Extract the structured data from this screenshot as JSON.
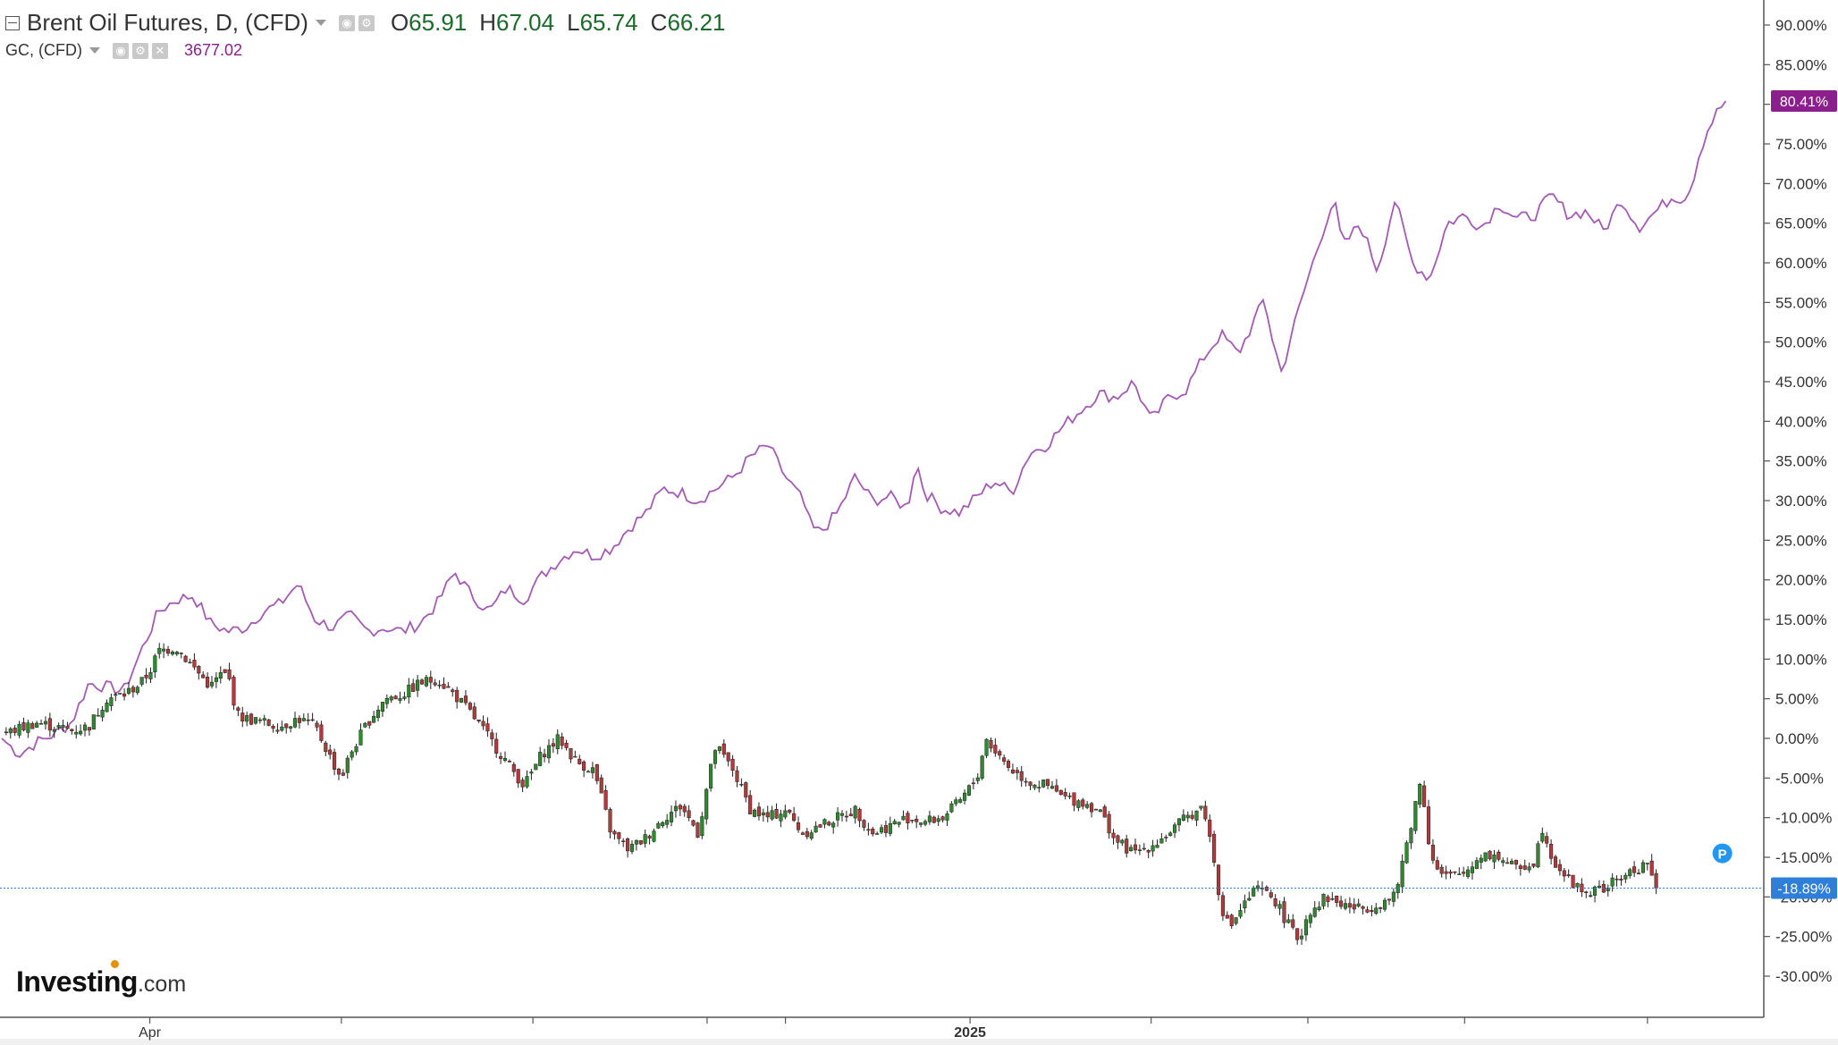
{
  "legend": {
    "series1_title": "Brent Oil Futures, D, (CFD)",
    "o_label": "O",
    "o_value": "65.91",
    "h_label": "H",
    "h_value": "67.04",
    "l_label": "L",
    "l_value": "65.74",
    "c_label": "C",
    "c_value": "66.21",
    "series2_title": "GC, (CFD)",
    "series2_value": "3677.02"
  },
  "logo": {
    "brand": "Investing",
    "suffix": ".com"
  },
  "colors": {
    "gold_line": "#a35ab5",
    "candle_up": "#2f8a2f",
    "candle_down": "#b23a3a",
    "gold_label_bg": "#8b1f8b",
    "brent_label_bg": "#2f7fd8",
    "marker": "#2196f3"
  },
  "chart_data": {
    "type": "line",
    "y_unit": "percent change",
    "ylim": [
      -33,
      94
    ],
    "y_ticks": [
      "90.00%",
      "85.00%",
      "80.00%",
      "75.00%",
      "70.00%",
      "65.00%",
      "60.00%",
      "55.00%",
      "50.00%",
      "45.00%",
      "40.00%",
      "35.00%",
      "30.00%",
      "25.00%",
      "20.00%",
      "15.00%",
      "10.00%",
      "5.00%",
      "0.00%",
      "-5.00%",
      "-10.00%",
      "-15.00%",
      "-20.00%",
      "-25.00%",
      "-30.00%"
    ],
    "x_labels": [
      {
        "label": "Apr",
        "t": 0.085
      },
      {
        "label": "2025",
        "t": 0.556
      }
    ],
    "x_ticks": [
      0.085,
      0.195,
      0.305,
      0.405,
      0.45,
      0.556,
      0.66,
      0.75,
      0.84,
      0.945
    ],
    "last_value_labels": [
      {
        "series": "GC, (CFD)",
        "value": 80.41,
        "text": "80.41%"
      },
      {
        "series": "Brent Oil Futures, D, (CFD)",
        "value": -18.89,
        "text": "-18.89%"
      }
    ],
    "marker": {
      "text": "P",
      "t": 0.988,
      "value": -14.5
    },
    "series": [
      {
        "name": "GC, (CFD)",
        "type": "line",
        "points": [
          [
            0,
            0
          ],
          [
            0.01,
            -2
          ],
          [
            0.02,
            -0.5
          ],
          [
            0.03,
            0.5
          ],
          [
            0.04,
            2
          ],
          [
            0.05,
            7
          ],
          [
            0.06,
            6.5
          ],
          [
            0.07,
            6
          ],
          [
            0.08,
            11
          ],
          [
            0.09,
            16
          ],
          [
            0.1,
            17.5
          ],
          [
            0.11,
            18
          ],
          [
            0.12,
            14.5
          ],
          [
            0.13,
            13.5
          ],
          [
            0.14,
            14
          ],
          [
            0.15,
            16
          ],
          [
            0.16,
            17
          ],
          [
            0.17,
            19.5
          ],
          [
            0.18,
            15
          ],
          [
            0.19,
            14
          ],
          [
            0.2,
            15.5
          ],
          [
            0.21,
            13.5
          ],
          [
            0.22,
            14
          ],
          [
            0.23,
            13.5
          ],
          [
            0.24,
            14.5
          ],
          [
            0.25,
            17
          ],
          [
            0.26,
            21
          ],
          [
            0.27,
            18
          ],
          [
            0.28,
            16
          ],
          [
            0.29,
            19
          ],
          [
            0.3,
            17.5
          ],
          [
            0.31,
            20.5
          ],
          [
            0.32,
            22.5
          ],
          [
            0.33,
            24
          ],
          [
            0.34,
            23
          ],
          [
            0.35,
            24
          ],
          [
            0.36,
            26.5
          ],
          [
            0.37,
            28.5
          ],
          [
            0.38,
            31.5
          ],
          [
            0.39,
            31
          ],
          [
            0.4,
            30
          ],
          [
            0.41,
            31.5
          ],
          [
            0.42,
            33
          ],
          [
            0.43,
            35.5
          ],
          [
            0.44,
            37
          ],
          [
            0.45,
            33
          ],
          [
            0.46,
            30
          ],
          [
            0.465,
            26.5
          ],
          [
            0.47,
            26
          ],
          [
            0.48,
            28.5
          ],
          [
            0.49,
            33
          ],
          [
            0.5,
            30
          ],
          [
            0.51,
            30.5
          ],
          [
            0.52,
            29
          ],
          [
            0.525,
            35
          ],
          [
            0.53,
            31
          ],
          [
            0.54,
            29
          ],
          [
            0.55,
            28.5
          ],
          [
            0.56,
            30.5
          ],
          [
            0.57,
            32.5
          ],
          [
            0.58,
            31
          ],
          [
            0.59,
            36
          ],
          [
            0.6,
            37
          ],
          [
            0.61,
            39.5
          ],
          [
            0.62,
            41.5
          ],
          [
            0.63,
            43.5
          ],
          [
            0.64,
            43
          ],
          [
            0.65,
            45
          ],
          [
            0.66,
            40
          ],
          [
            0.67,
            43
          ],
          [
            0.68,
            44
          ],
          [
            0.69,
            48
          ],
          [
            0.7,
            51
          ],
          [
            0.71,
            48.5
          ],
          [
            0.72,
            53
          ],
          [
            0.725,
            55.5
          ],
          [
            0.73,
            50
          ],
          [
            0.735,
            46
          ],
          [
            0.74,
            50.5
          ],
          [
            0.75,
            58
          ],
          [
            0.76,
            65
          ],
          [
            0.765,
            68
          ],
          [
            0.77,
            62
          ],
          [
            0.78,
            65
          ],
          [
            0.79,
            59
          ],
          [
            0.8,
            68
          ],
          [
            0.81,
            60
          ],
          [
            0.82,
            58
          ],
          [
            0.83,
            65
          ],
          [
            0.84,
            66
          ],
          [
            0.85,
            64.5
          ],
          [
            0.86,
            67.5
          ],
          [
            0.87,
            65.5
          ],
          [
            0.88,
            66
          ],
          [
            0.89,
            68.5
          ],
          [
            0.9,
            66
          ],
          [
            0.91,
            66.5
          ],
          [
            0.92,
            64
          ],
          [
            0.93,
            68
          ],
          [
            0.94,
            64.5
          ],
          [
            0.95,
            66.5
          ],
          [
            0.96,
            68.5
          ],
          [
            0.965,
            68
          ],
          [
            0.97,
            69.5
          ],
          [
            0.975,
            74
          ],
          [
            0.98,
            77
          ],
          [
            0.985,
            79
          ],
          [
            0.99,
            80.41
          ]
        ]
      },
      {
        "name": "Brent Oil Futures, D, (CFD)",
        "type": "candlestick",
        "points": [
          [
            0,
            0.5
          ],
          [
            0.02,
            2
          ],
          [
            0.04,
            1
          ],
          [
            0.05,
            1.5
          ],
          [
            0.06,
            5
          ],
          [
            0.07,
            5.5
          ],
          [
            0.08,
            7
          ],
          [
            0.085,
            8.5
          ],
          [
            0.09,
            11
          ],
          [
            0.1,
            11.5
          ],
          [
            0.11,
            9
          ],
          [
            0.12,
            6.5
          ],
          [
            0.125,
            8
          ],
          [
            0.13,
            8
          ],
          [
            0.135,
            3
          ],
          [
            0.14,
            2.5
          ],
          [
            0.15,
            2
          ],
          [
            0.16,
            1.5
          ],
          [
            0.17,
            2.5
          ],
          [
            0.18,
            1.5
          ],
          [
            0.19,
            -3
          ],
          [
            0.195,
            -5
          ],
          [
            0.2,
            -2
          ],
          [
            0.21,
            2
          ],
          [
            0.22,
            5
          ],
          [
            0.23,
            5.5
          ],
          [
            0.24,
            7
          ],
          [
            0.25,
            7.5
          ],
          [
            0.26,
            5.5
          ],
          [
            0.27,
            3
          ],
          [
            0.28,
            0
          ],
          [
            0.29,
            -3
          ],
          [
            0.3,
            -6
          ],
          [
            0.31,
            -2
          ],
          [
            0.32,
            0
          ],
          [
            0.33,
            -3
          ],
          [
            0.34,
            -4
          ],
          [
            0.345,
            -8
          ],
          [
            0.35,
            -12
          ],
          [
            0.36,
            -14
          ],
          [
            0.37,
            -12.5
          ],
          [
            0.38,
            -10
          ],
          [
            0.39,
            -8.5
          ],
          [
            0.4,
            -12
          ],
          [
            0.405,
            -6
          ],
          [
            0.41,
            -1
          ],
          [
            0.42,
            -4
          ],
          [
            0.43,
            -9
          ],
          [
            0.44,
            -10
          ],
          [
            0.45,
            -9
          ],
          [
            0.46,
            -12
          ],
          [
            0.47,
            -11
          ],
          [
            0.48,
            -10
          ],
          [
            0.49,
            -9
          ],
          [
            0.5,
            -12
          ],
          [
            0.51,
            -11
          ],
          [
            0.52,
            -10
          ],
          [
            0.53,
            -10.5
          ],
          [
            0.54,
            -10
          ],
          [
            0.55,
            -8
          ],
          [
            0.56,
            -5
          ],
          [
            0.565,
            0
          ],
          [
            0.57,
            -1.5
          ],
          [
            0.58,
            -4
          ],
          [
            0.59,
            -5.5
          ],
          [
            0.6,
            -6
          ],
          [
            0.61,
            -7.5
          ],
          [
            0.62,
            -8
          ],
          [
            0.63,
            -9
          ],
          [
            0.64,
            -13
          ],
          [
            0.65,
            -14.5
          ],
          [
            0.66,
            -13.5
          ],
          [
            0.67,
            -12
          ],
          [
            0.68,
            -10
          ],
          [
            0.69,
            -8.5
          ],
          [
            0.695,
            -14
          ],
          [
            0.7,
            -21
          ],
          [
            0.705,
            -24
          ],
          [
            0.71,
            -22
          ],
          [
            0.72,
            -19
          ],
          [
            0.73,
            -20
          ],
          [
            0.74,
            -24
          ],
          [
            0.745,
            -25.5
          ],
          [
            0.75,
            -22
          ],
          [
            0.76,
            -20
          ],
          [
            0.77,
            -21
          ],
          [
            0.78,
            -21.5
          ],
          [
            0.79,
            -21
          ],
          [
            0.8,
            -20
          ],
          [
            0.805,
            -15
          ],
          [
            0.81,
            -10
          ],
          [
            0.815,
            -5
          ],
          [
            0.82,
            -14
          ],
          [
            0.825,
            -17
          ],
          [
            0.83,
            -17.5
          ],
          [
            0.84,
            -17
          ],
          [
            0.85,
            -14.5
          ],
          [
            0.86,
            -15
          ],
          [
            0.87,
            -16.5
          ],
          [
            0.88,
            -15.5
          ],
          [
            0.885,
            -11
          ],
          [
            0.89,
            -15
          ],
          [
            0.9,
            -18
          ],
          [
            0.91,
            -19.5
          ],
          [
            0.92,
            -19
          ],
          [
            0.93,
            -17.5
          ],
          [
            0.94,
            -16.5
          ],
          [
            0.945,
            -15.5
          ],
          [
            0.95,
            -18.89
          ]
        ]
      }
    ]
  }
}
